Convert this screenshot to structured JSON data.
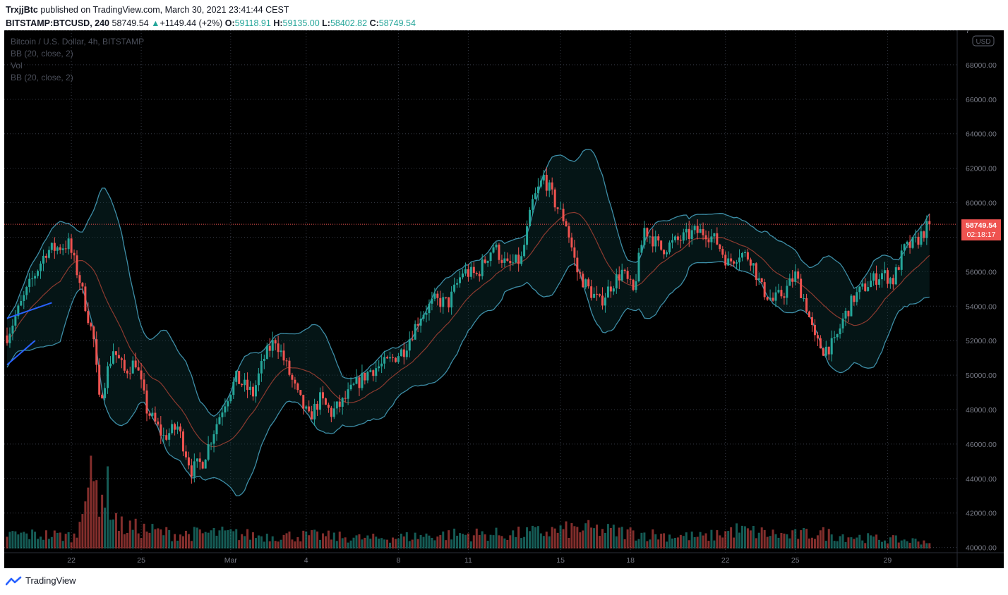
{
  "header": {
    "author": "TrxjjBtc",
    "published_text": "published on TradingView.com, March 30, 2021 23:41:44 CEST",
    "symbol": "BITSTAMP:BTCUSD, 240",
    "last": "58749.54",
    "change": "+1149.44 (+2%)",
    "o_label": "O:",
    "o": "59118.91",
    "h_label": "H:",
    "h": "59135.00",
    "l_label": "L:",
    "l": "58402.82",
    "c_label": "C:",
    "c": "58749.54"
  },
  "legend": {
    "line1": "Bitcoin / U.S. Dollar, 4h, BITSTAMP",
    "line2": "BB (20, close, 2)",
    "line3": "Vol",
    "line4": "BB (20, close, 2)"
  },
  "currency_badge": "USD",
  "price_label": "58749.54",
  "countdown_label": "02:18:17",
  "footer": {
    "brand": "TradingView"
  },
  "colors": {
    "background": "#000000",
    "up": "#26a69a",
    "down": "#ef5350",
    "bb_band": "#3d8da6",
    "bb_basis": "#8b3a2f",
    "price_badge": "#ef5350",
    "trendline": "#2962ff"
  },
  "chart_data": {
    "type": "candlestick",
    "title": "Bitcoin / U.S. Dollar, 4h, BITSTAMP",
    "y_axis_ticks": [
      40000,
      42000,
      44000,
      46000,
      48000,
      50000,
      52000,
      54000,
      56000,
      58000,
      60000,
      62000,
      64000,
      66000,
      68000
    ],
    "y_top_partial_label": "7",
    "ylim": [
      38800,
      70000
    ],
    "x_axis_ticks": [
      "22",
      "25",
      "Mar",
      "4",
      "8",
      "11",
      "15",
      "18",
      "22",
      "25",
      "29"
    ],
    "grid": true,
    "price_anchors": [
      [
        0,
        52300
      ],
      [
        8,
        55200
      ],
      [
        14,
        57200
      ],
      [
        22,
        57600
      ],
      [
        26,
        55500
      ],
      [
        31,
        52000
      ],
      [
        33,
        48500
      ],
      [
        38,
        51500
      ],
      [
        42,
        50200
      ],
      [
        46,
        50800
      ],
      [
        50,
        48000
      ],
      [
        56,
        46400
      ],
      [
        61,
        47000
      ],
      [
        66,
        44500
      ],
      [
        70,
        45000
      ],
      [
        74,
        46800
      ],
      [
        78,
        48500
      ],
      [
        82,
        49800
      ],
      [
        88,
        48900
      ],
      [
        92,
        51000
      ],
      [
        96,
        52100
      ],
      [
        100,
        50500
      ],
      [
        104,
        48800
      ],
      [
        108,
        47500
      ],
      [
        112,
        48600
      ],
      [
        116,
        47800
      ],
      [
        120,
        48400
      ],
      [
        124,
        49300
      ],
      [
        130,
        50300
      ],
      [
        136,
        50700
      ],
      [
        142,
        51500
      ],
      [
        148,
        53500
      ],
      [
        153,
        54300
      ],
      [
        158,
        54200
      ],
      [
        163,
        56000
      ],
      [
        168,
        55800
      ],
      [
        174,
        57500
      ],
      [
        179,
        56300
      ],
      [
        184,
        56700
      ],
      [
        188,
        60000
      ],
      [
        192,
        61500
      ],
      [
        196,
        60000
      ],
      [
        200,
        58800
      ],
      [
        204,
        56000
      ],
      [
        208,
        55000
      ],
      [
        212,
        54200
      ],
      [
        216,
        55200
      ],
      [
        220,
        56000
      ],
      [
        224,
        54800
      ],
      [
        228,
        58500
      ],
      [
        234,
        57300
      ],
      [
        240,
        57800
      ],
      [
        246,
        58300
      ],
      [
        250,
        58300
      ],
      [
        254,
        57700
      ],
      [
        258,
        56500
      ],
      [
        262,
        57100
      ],
      [
        266,
        56800
      ],
      [
        270,
        55000
      ],
      [
        274,
        54300
      ],
      [
        278,
        54800
      ],
      [
        282,
        55800
      ],
      [
        286,
        54000
      ],
      [
        289,
        52000
      ],
      [
        292,
        51500
      ],
      [
        296,
        51800
      ],
      [
        299,
        53200
      ],
      [
        303,
        54500
      ],
      [
        308,
        55300
      ],
      [
        313,
        55900
      ],
      [
        317,
        55500
      ],
      [
        321,
        57300
      ],
      [
        325,
        57700
      ],
      [
        330,
        58750
      ]
    ],
    "volume_anchors": [
      [
        0,
        1.0
      ],
      [
        15,
        0.95
      ],
      [
        25,
        0.85
      ],
      [
        27,
        4.7
      ],
      [
        29,
        4.5
      ],
      [
        36,
        4.0
      ],
      [
        40,
        1.6
      ],
      [
        60,
        1.0
      ],
      [
        75,
        1.1
      ],
      [
        90,
        0.9
      ],
      [
        110,
        0.9
      ],
      [
        130,
        0.7
      ],
      [
        160,
        1.0
      ],
      [
        180,
        1.0
      ],
      [
        200,
        1.3
      ],
      [
        205,
        1.4
      ],
      [
        230,
        1.0
      ],
      [
        250,
        0.8
      ],
      [
        260,
        1.3
      ],
      [
        280,
        0.9
      ],
      [
        290,
        1.1
      ],
      [
        310,
        0.7
      ],
      [
        330,
        0.5
      ]
    ],
    "last_price": 58749.54,
    "trendlines": [
      {
        "from_bar": 0,
        "from_price": 53300,
        "to_bar": 16,
        "to_price": 54200
      },
      {
        "from_bar": 0,
        "from_price": 50600,
        "to_bar": 10,
        "to_price": 52000
      }
    ]
  }
}
